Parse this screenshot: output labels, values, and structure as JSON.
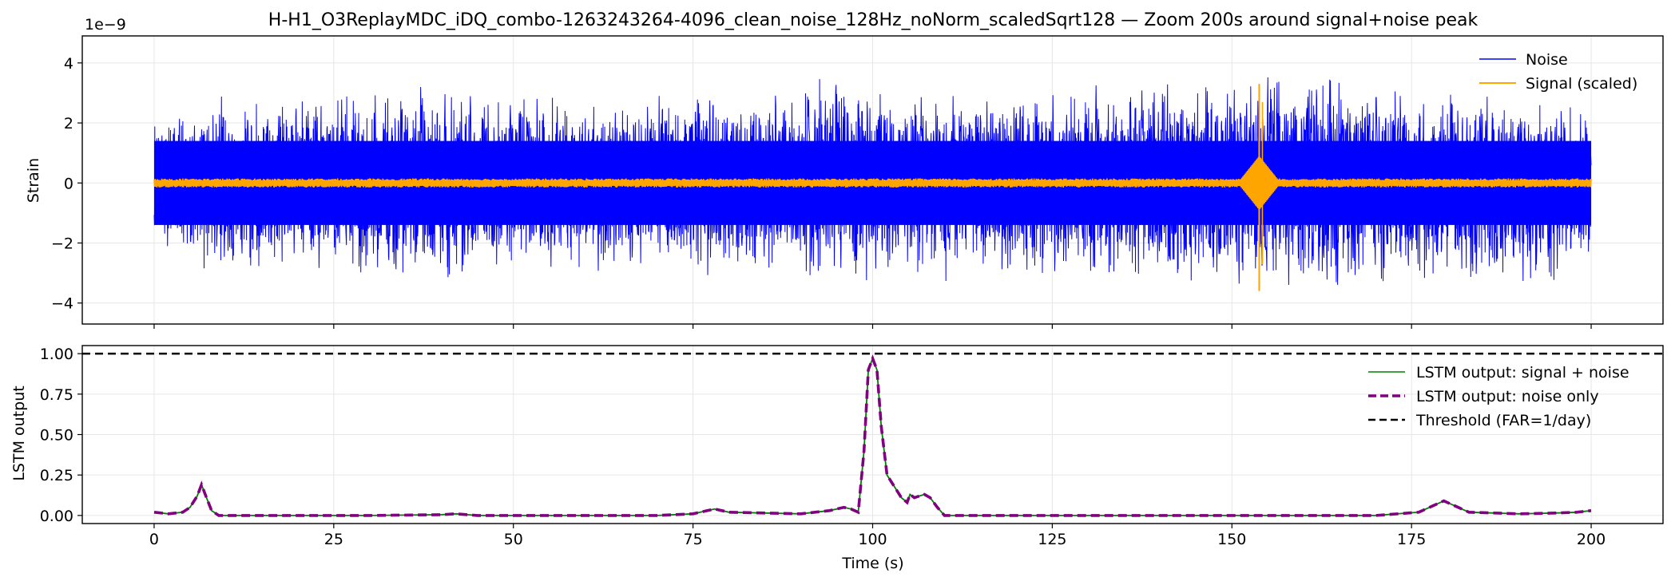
{
  "title": "H-H1_O3ReplayMDC_iDQ_combo-1263243264-4096_clean_noise_128Hz_noNorm_scaledSqrt128 — Zoom 200s around signal+noise peak",
  "colors": {
    "noise": "#0000ff",
    "signal": "#ffa500",
    "lstm_signal_noise": "#008000",
    "lstm_noise_only": "#800080",
    "threshold": "#000000"
  },
  "chart_data": [
    {
      "type": "line",
      "title": "H-H1_O3ReplayMDC_iDQ_combo-1263243264-4096_clean_noise_128Hz_noNorm_scaledSqrt128 — Zoom 200s around signal+noise peak",
      "xlabel": "",
      "ylabel": "Strain",
      "offset_text": "1e−9",
      "xlim": [
        -10,
        210
      ],
      "ylim": [
        -4.7,
        4.9
      ],
      "yticks": [
        -4,
        -2,
        0,
        2,
        4
      ],
      "ytick_labels": [
        "−4",
        "−2",
        "0",
        "2",
        "4"
      ],
      "xticks": [
        0,
        25,
        50,
        75,
        100,
        125,
        150,
        175,
        200
      ],
      "grid": true,
      "legend": "top-right",
      "series": [
        {
          "name": "Noise",
          "description_envelope": {
            "x": [
              0,
              10,
              20,
              30,
              40,
              50,
              60,
              70,
              80,
              90,
              97,
              100,
              110,
              120,
              130,
              140,
              150,
              155,
              160,
              170,
              180,
              190,
              200
            ],
            "peak_max": [
              2.6,
              3.0,
              3.2,
              3.4,
              3.3,
              3.2,
              3.0,
              3.2,
              3.3,
              3.1,
              4.4,
              3.4,
              3.2,
              3.1,
              3.3,
              3.5,
              3.6,
              3.9,
              4.0,
              3.5,
              3.3,
              3.2,
              2.6
            ],
            "peak_min": [
              -2.4,
              -3.3,
              -3.0,
              -3.4,
              -3.4,
              -3.0,
              -3.1,
              -3.2,
              -3.4,
              -3.3,
              -3.5,
              -3.4,
              -3.4,
              -3.3,
              -3.5,
              -3.8,
              -3.8,
              -3.9,
              -4.3,
              -3.7,
              -3.9,
              -4.0,
              -2.6
            ]
          }
        },
        {
          "name": "Signal (scaled)",
          "baseline_amplitude": 0.15,
          "peak_time": 153.8,
          "peak_max": 3.3,
          "peak_min": -3.6
        }
      ]
    },
    {
      "type": "line",
      "xlabel": "Time (s)",
      "ylabel": "LSTM output",
      "xlim": [
        -10,
        210
      ],
      "ylim": [
        -0.05,
        1.05
      ],
      "yticks": [
        0.0,
        0.25,
        0.5,
        0.75,
        1.0
      ],
      "ytick_labels": [
        "0.00",
        "0.25",
        "0.50",
        "0.75",
        "1.00"
      ],
      "xticks": [
        0,
        25,
        50,
        75,
        100,
        125,
        150,
        175,
        200
      ],
      "xtick_labels": [
        "0",
        "25",
        "50",
        "75",
        "100",
        "125",
        "150",
        "175",
        "200"
      ],
      "grid": true,
      "legend": "top-right",
      "threshold": 1.0,
      "x": [
        0,
        2,
        4,
        5,
        6,
        6.6,
        7.2,
        8,
        9,
        12,
        20,
        30,
        40,
        42,
        45,
        50,
        60,
        70,
        75,
        77,
        78,
        80,
        85,
        90,
        94,
        96,
        97,
        98,
        98.8,
        99.4,
        100,
        100.6,
        101.2,
        102,
        103,
        104,
        104.8,
        105.2,
        105.8,
        106.5,
        107.2,
        108,
        109,
        110,
        115,
        120,
        130,
        150,
        170,
        176,
        178,
        179.5,
        181,
        183,
        190,
        195,
        198,
        200
      ],
      "series": [
        {
          "name": "LSTM output: signal + noise",
          "values": [
            0.02,
            0.01,
            0.02,
            0.05,
            0.12,
            0.19,
            0.12,
            0.03,
            0.0,
            0.0,
            0.0,
            0.0,
            0.005,
            0.01,
            0.0,
            0.0,
            0.0,
            0.0,
            0.01,
            0.03,
            0.04,
            0.02,
            0.015,
            0.01,
            0.03,
            0.05,
            0.04,
            0.02,
            0.4,
            0.9,
            0.97,
            0.9,
            0.55,
            0.25,
            0.18,
            0.11,
            0.08,
            0.13,
            0.11,
            0.12,
            0.13,
            0.11,
            0.05,
            0.0,
            0.0,
            0.0,
            0.0,
            0.0,
            0.0,
            0.02,
            0.06,
            0.09,
            0.06,
            0.02,
            0.01,
            0.015,
            0.02,
            0.03
          ]
        },
        {
          "name": "LSTM output: noise only",
          "values": [
            0.02,
            0.01,
            0.02,
            0.05,
            0.12,
            0.19,
            0.12,
            0.03,
            0.0,
            0.0,
            0.0,
            0.0,
            0.005,
            0.01,
            0.0,
            0.0,
            0.0,
            0.0,
            0.01,
            0.03,
            0.04,
            0.02,
            0.015,
            0.01,
            0.03,
            0.05,
            0.04,
            0.02,
            0.4,
            0.9,
            0.97,
            0.9,
            0.55,
            0.25,
            0.18,
            0.11,
            0.08,
            0.13,
            0.11,
            0.12,
            0.13,
            0.11,
            0.05,
            0.0,
            0.0,
            0.0,
            0.0,
            0.0,
            0.0,
            0.02,
            0.06,
            0.09,
            0.06,
            0.02,
            0.01,
            0.015,
            0.02,
            0.03
          ]
        },
        {
          "name": "Threshold (FAR=1/day)",
          "constant": 1.0
        }
      ]
    }
  ]
}
